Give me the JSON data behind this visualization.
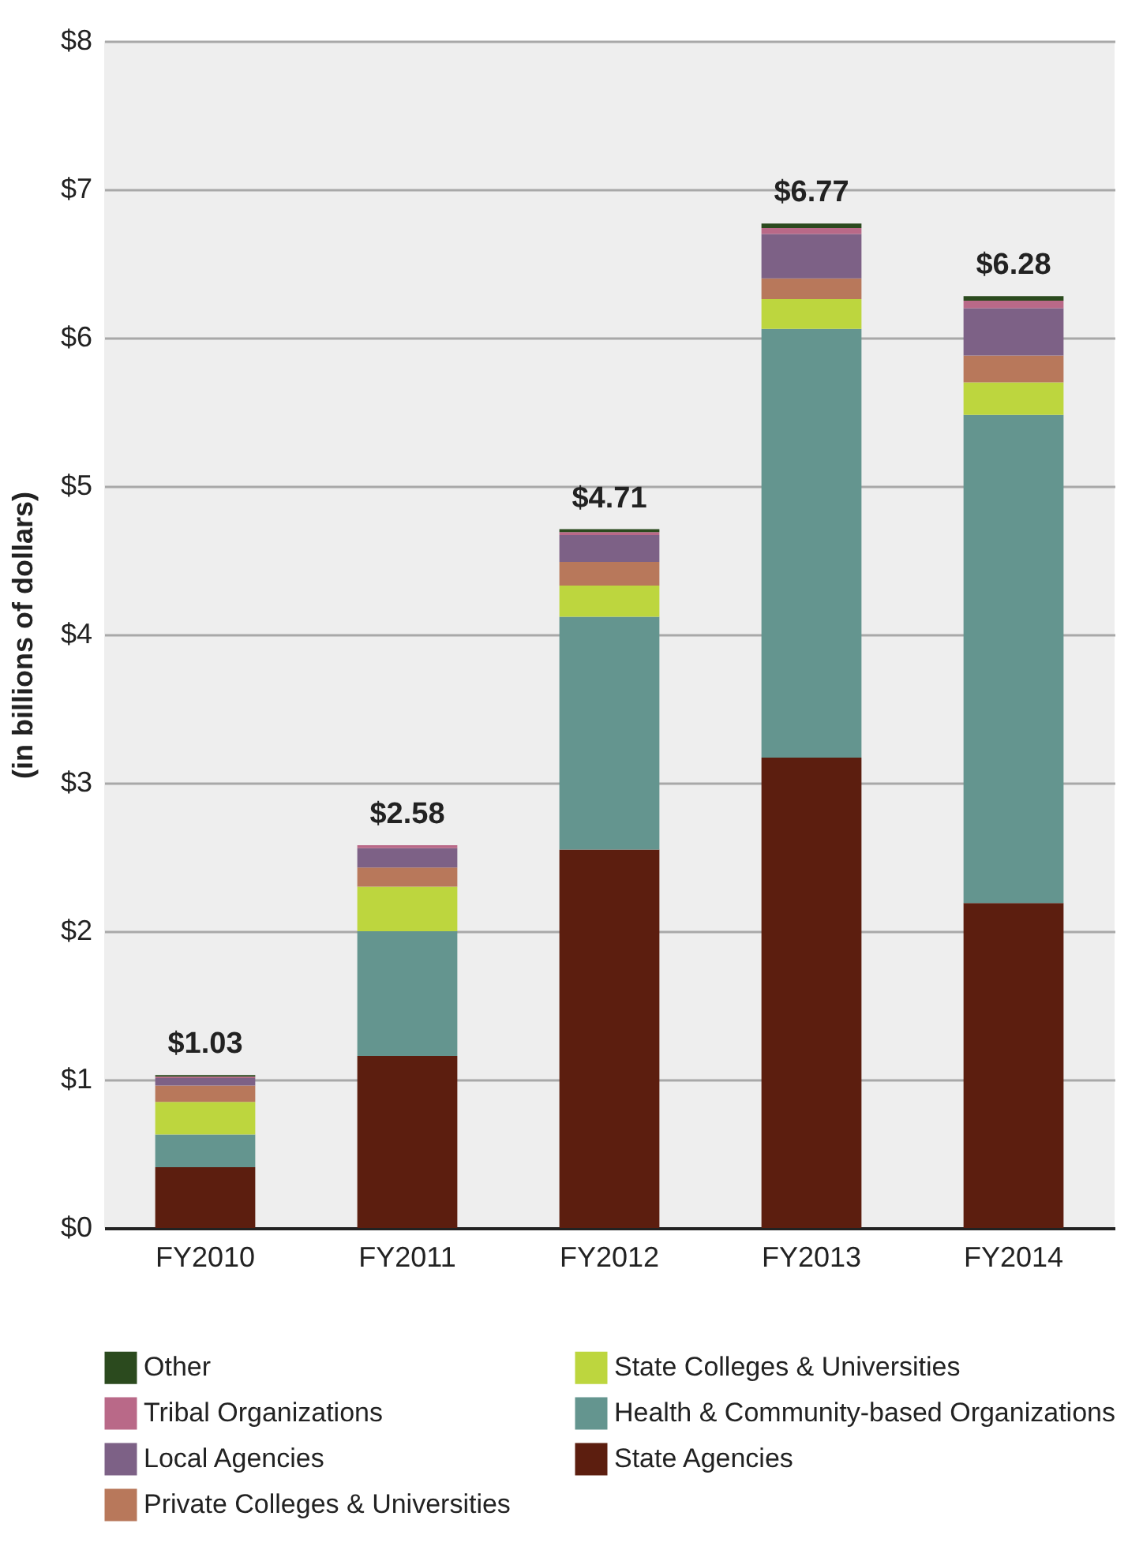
{
  "chart_data": {
    "type": "bar",
    "stacked": true,
    "ylabel": "(in billions of dollars)",
    "categories": [
      "FY2010",
      "FY2011",
      "FY2012",
      "FY2013",
      "FY2014"
    ],
    "series": [
      {
        "name": "State Agencies",
        "color": "#5c1e0f",
        "values": [
          0.41,
          1.16,
          2.55,
          3.17,
          2.19
        ]
      },
      {
        "name": "Health & Community-based Organizations",
        "color": "#64958f",
        "values": [
          0.22,
          0.84,
          1.57,
          2.89,
          3.29
        ]
      },
      {
        "name": "State Colleges & Universities",
        "color": "#bdd63e",
        "values": [
          0.22,
          0.3,
          0.21,
          0.2,
          0.22
        ]
      },
      {
        "name": "Private Colleges & Universities",
        "color": "#b8785b",
        "values": [
          0.11,
          0.13,
          0.16,
          0.14,
          0.18
        ]
      },
      {
        "name": "Local Agencies",
        "color": "#7d6186",
        "values": [
          0.05,
          0.13,
          0.18,
          0.3,
          0.32
        ]
      },
      {
        "name": "Tribal Organizations",
        "color": "#b96988",
        "values": [
          0.01,
          0.02,
          0.02,
          0.04,
          0.05
        ]
      },
      {
        "name": "Other",
        "color": "#2b4a1e",
        "values": [
          0.01,
          0,
          0.02,
          0.03,
          0.03
        ]
      }
    ],
    "totals": [
      "$1.03",
      "$2.58",
      "$4.71",
      "$6.77",
      "$6.28"
    ],
    "ylim": [
      0,
      8
    ],
    "yticks": [
      {
        "value": 0,
        "label": "$0"
      },
      {
        "value": 1,
        "label": "$1"
      },
      {
        "value": 2,
        "label": "$2"
      },
      {
        "value": 3,
        "label": "$3"
      },
      {
        "value": 4,
        "label": "$4"
      },
      {
        "value": 5,
        "label": "$5"
      },
      {
        "value": 6,
        "label": "$6"
      },
      {
        "value": 7,
        "label": "$7"
      },
      {
        "value": 8,
        "label": "$8"
      }
    ],
    "grid": "y",
    "legend": "bottom"
  }
}
